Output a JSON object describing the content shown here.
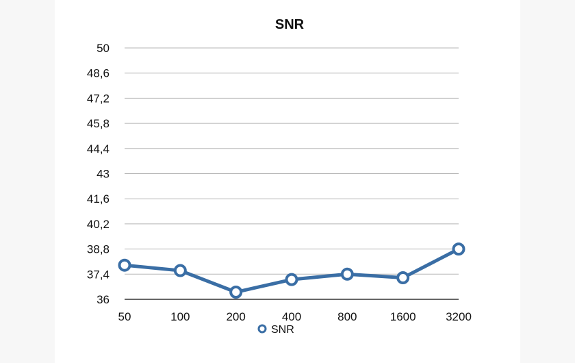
{
  "chart_data": {
    "type": "line",
    "title": "SNR",
    "xlabel": "",
    "ylabel": "",
    "categories": [
      "50",
      "100",
      "200",
      "400",
      "800",
      "1600",
      "3200"
    ],
    "series": [
      {
        "name": "SNR",
        "values": [
          37.9,
          37.6,
          36.4,
          37.1,
          37.4,
          37.2,
          38.8
        ]
      }
    ],
    "ylim": [
      36,
      50
    ],
    "yticks": [
      "36",
      "37,4",
      "38,8",
      "40,2",
      "41,6",
      "43",
      "44,4",
      "45,8",
      "47,2",
      "48,6",
      "50"
    ],
    "grid": "horizontal",
    "legend_position": "bottom",
    "colors": {
      "series": "#3a6ea5",
      "grid": "#b5b5b5",
      "axis": "#333333"
    }
  }
}
